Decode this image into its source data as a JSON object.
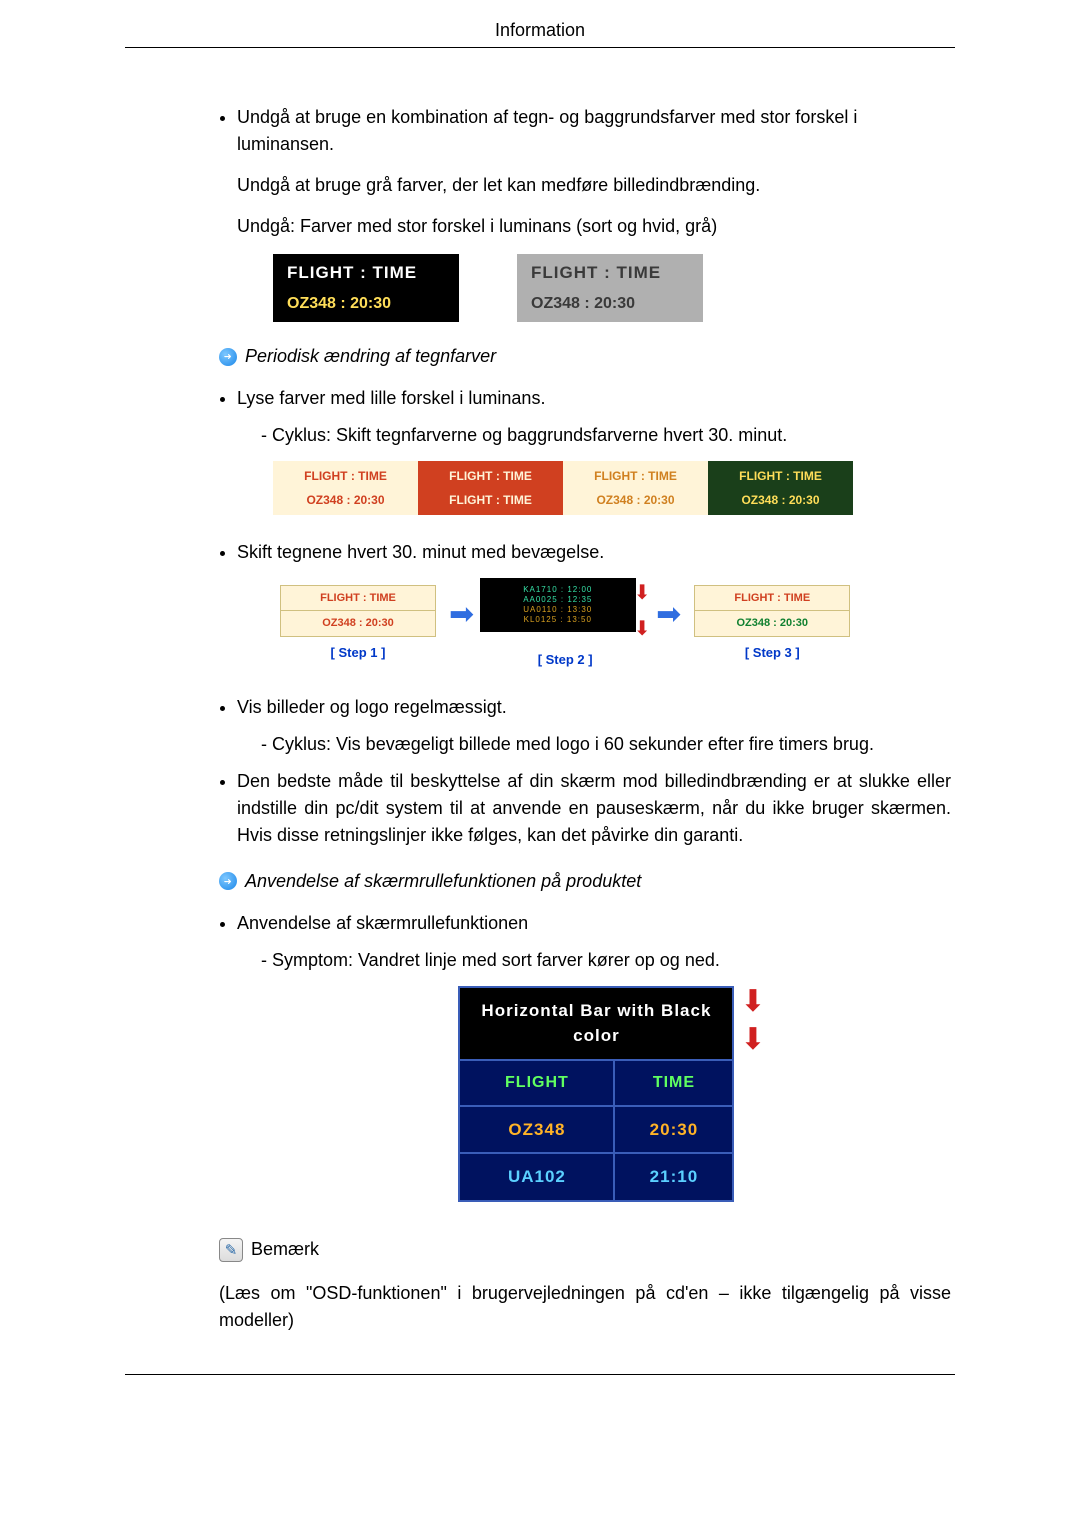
{
  "header": {
    "title": "Information"
  },
  "section1": {
    "bullet1": "Undgå at bruge en kombination af tegn- og baggrundsfarver med stor forskel i luminansen.",
    "p2": "Undgå at bruge grå farver, der let kan medføre billedindbrænding.",
    "p3": "Undgå: Farver med stor forskel i luminans (sort og hvid, grå)"
  },
  "fig1": {
    "blk": {
      "l1": "FLIGHT : TIME",
      "l2": "OZ348    : 20:30",
      "bg": "#000000",
      "l2_color": "#ffde59"
    },
    "gry": {
      "l1": "FLIGHT  :  TIME",
      "l2": "OZ348    :  20:30",
      "bg": "#b0b0b0",
      "fg": "#3a3a3a"
    }
  },
  "head2": "Periodisk ændring af tegnfarver",
  "section2": {
    "bullet1": "Lyse farver med lille forskel i luminans.",
    "sub1": "- Cyklus: Skift tegnfarverne og baggrundsfarverne hvert 30. minut."
  },
  "fig2": {
    "cells": [
      {
        "bg": "#fff4d8",
        "fg": "#d04020",
        "r1": "FLIGHT : TIME",
        "r2": "OZ348   : 20:30"
      },
      {
        "bg": "#d04020",
        "fg": "#fff4d8",
        "r1": "FLIGHT : TIME",
        "r2": "FLIGHT : TIME"
      },
      {
        "bg": "#fff4d8",
        "fg": "#d08020",
        "r1": "FLIGHT  :  TIME",
        "r2": "OZ348   : 20:30"
      },
      {
        "bg": "#1a3f1a",
        "fg": "#ffde59",
        "r1": "FLIGHT : TIME",
        "r2": "OZ348   : 20:30"
      }
    ]
  },
  "section3": {
    "bullet1": "Skift tegnene hvert 30. minut med bevægelse."
  },
  "fig3": {
    "step1": {
      "top": {
        "bg": "#fff4d8",
        "fg": "#d04020",
        "t": "FLIGHT  :  TIME"
      },
      "bot": {
        "bg": "#fff4d8",
        "fg": "#d04020",
        "t": "OZ348   : 20:30"
      },
      "label": "[ Step 1 ]"
    },
    "step2": {
      "g1": {
        "fg": "#36e0a6",
        "t": "KA1710 : 12:00"
      },
      "g2": {
        "fg": "#36e0a6",
        "t": "AA0025 : 12:35"
      },
      "g3": {
        "fg": "#d8a020",
        "t": "UA0110 : 13:30"
      },
      "g4": {
        "fg": "#d8a020",
        "t": "KL0125 : 13:50"
      },
      "label": "[ Step 2 ]"
    },
    "step3": {
      "top": {
        "bg": "#fff4d8",
        "fg": "#d04020",
        "t": "FLIGHT  :  TIME"
      },
      "bot": {
        "bg": "#fff4d8",
        "fg": "#108030",
        "t": "OZ348   : 20:30"
      },
      "label": "[ Step 3 ]"
    }
  },
  "section4": {
    "b1": "Vis billeder og logo regelmæssigt.",
    "s1": "- Cyklus: Vis bevægeligt billede med logo i 60 sekunder efter fire timers brug.",
    "b2": "Den bedste måde til beskyttelse af din skærm mod billedindbrænding er at slukke eller indstille din pc/dit system til at anvende en pauseskærm, når du ikke bruger skærmen. Hvis disse retningslinjer ikke følges, kan det påvirke din garanti."
  },
  "head3": "Anvendelse af skærmrullefunktionen på produktet",
  "section5": {
    "b1": "Anvendelse af skærmrullefunktionen",
    "s1": "- Symptom: Vandret linje med sort farver kører op og ned."
  },
  "fig4": {
    "caption": "Horizontal Bar with Black color",
    "rows": [
      [
        "FLIGHT",
        "TIME"
      ],
      [
        "OZ348",
        "20:30"
      ],
      [
        "UA102",
        "21:10"
      ]
    ],
    "colors": {
      "header_fg": "#60ff60",
      "row1_fg": "#ffb327",
      "row2_fg": "#5bd0ff",
      "bg": "#00125f",
      "border": "#3a5db8"
    }
  },
  "note": {
    "title": "Bemærk",
    "body": "(Læs om \"OSD-funktionen\" i brugervejledningen på cd'en – ikke tilgængelig på visse modeller)"
  }
}
